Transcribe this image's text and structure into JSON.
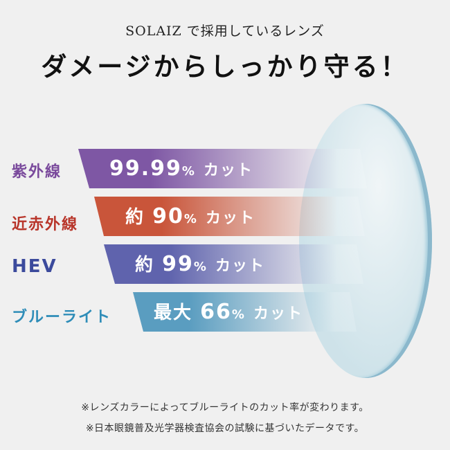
{
  "header": {
    "subtitle": "SOLAIZ で採用しているレンズ",
    "title": "ダメージからしっかり守る！"
  },
  "rows": [
    {
      "label": "紫外線",
      "prefix": "",
      "value": "99.99",
      "unit": "%",
      "suffix": "カット",
      "color": "#7e57a4",
      "percent": 99.99
    },
    {
      "label": "近赤外線",
      "prefix": "約",
      "value": "90",
      "unit": "%",
      "suffix": "カット",
      "color": "#c9553a",
      "percent": 90
    },
    {
      "label": "HEV",
      "prefix": "約",
      "value": "99",
      "unit": "%",
      "suffix": "カット",
      "color": "#5f63ad",
      "percent": 99
    },
    {
      "label": "ブルーライト",
      "prefix": "最大",
      "value": "66",
      "unit": "%",
      "suffix": "カット",
      "color": "#5a9dc0",
      "percent": 66
    }
  ],
  "label_colors": [
    "#7a4a9c",
    "#b8352a",
    "#3b4a9c",
    "#2f8db8"
  ],
  "notes": [
    "※レンズカラーによってブルーライトのカット率が変わります。",
    "※日本眼鏡普及光学器検査協会の試験に基づいたデータです。"
  ]
}
